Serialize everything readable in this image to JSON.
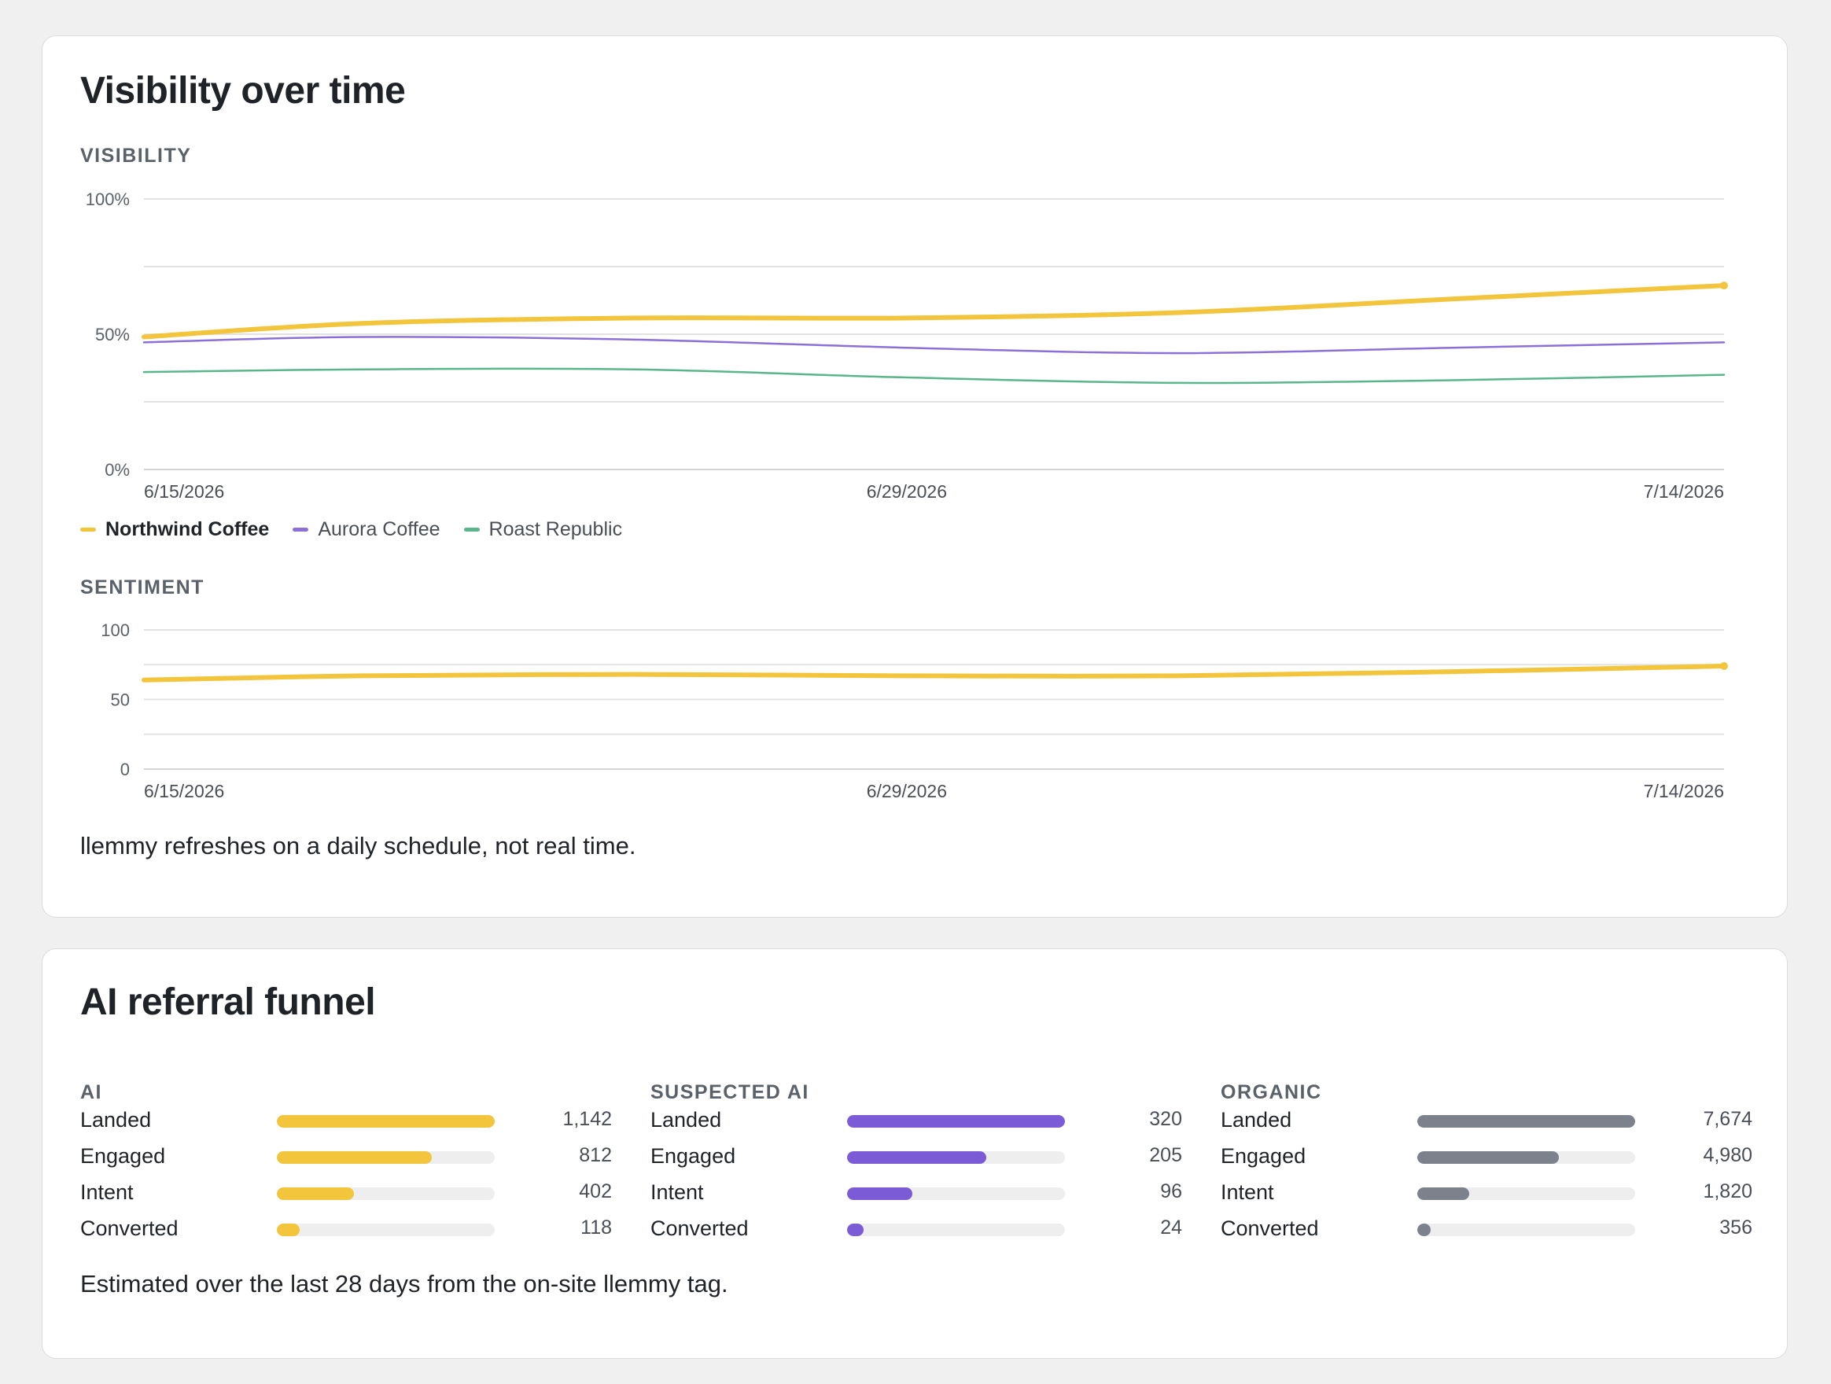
{
  "visibility_card": {
    "title": "Visibility over time",
    "visibility_label": "VISIBILITY",
    "sentiment_label": "SENTIMENT",
    "note": "llemmy refreshes on a daily schedule, not real time."
  },
  "funnel_card": {
    "title": "AI referral funnel",
    "note": "Estimated over the last 28 days from the on-site llemmy tag.",
    "columns": [
      {
        "title": "AI",
        "color": "#f2c53d",
        "rows": [
          {
            "label": "Landed",
            "value": 1142,
            "display": "1,142"
          },
          {
            "label": "Engaged",
            "value": 812,
            "display": "812"
          },
          {
            "label": "Intent",
            "value": 402,
            "display": "402"
          },
          {
            "label": "Converted",
            "value": 118,
            "display": "118"
          }
        ]
      },
      {
        "title": "SUSPECTED AI",
        "color": "#7b5bd6",
        "rows": [
          {
            "label": "Landed",
            "value": 320,
            "display": "320"
          },
          {
            "label": "Engaged",
            "value": 205,
            "display": "205"
          },
          {
            "label": "Intent",
            "value": 96,
            "display": "96"
          },
          {
            "label": "Converted",
            "value": 24,
            "display": "24"
          }
        ]
      },
      {
        "title": "ORGANIC",
        "color": "#7d818b",
        "rows": [
          {
            "label": "Landed",
            "value": 7674,
            "display": "7,674"
          },
          {
            "label": "Engaged",
            "value": 4980,
            "display": "4,980"
          },
          {
            "label": "Intent",
            "value": 1820,
            "display": "1,820"
          },
          {
            "label": "Converted",
            "value": 356,
            "display": "356"
          }
        ]
      }
    ]
  },
  "chart_data": [
    {
      "type": "line",
      "ylabel": "VISIBILITY",
      "ylim": [
        0,
        100
      ],
      "y_ticks": [
        "0%",
        "50%",
        "100%"
      ],
      "x_ticks": [
        "6/15/2026",
        "6/29/2026",
        "7/14/2026"
      ],
      "x_range": [
        "6/15/2026",
        "7/14/2026"
      ],
      "grid": true,
      "legend": "bottom-left",
      "x": [
        "6/15/2026",
        "6/19/2026",
        "6/24/2026",
        "6/29/2026",
        "7/4/2026",
        "7/9/2026",
        "7/14/2026"
      ],
      "series": [
        {
          "name": "Northwind Coffee",
          "color": "#f2c53d",
          "width": 6,
          "primary": true,
          "values": [
            49,
            54,
            56,
            56,
            58,
            63,
            68
          ]
        },
        {
          "name": "Aurora Coffee",
          "color": "#8c6fd9",
          "width": 2.5,
          "values": [
            47,
            49,
            48,
            45,
            43,
            45,
            47
          ]
        },
        {
          "name": "Roast Republic",
          "color": "#5bb58b",
          "width": 2.5,
          "values": [
            36,
            37,
            37,
            34,
            32,
            33,
            35
          ]
        }
      ]
    },
    {
      "type": "line",
      "ylabel": "SENTIMENT",
      "ylim": [
        0,
        100
      ],
      "y_ticks": [
        "0",
        "50",
        "100"
      ],
      "x_ticks": [
        "6/15/2026",
        "6/29/2026",
        "7/14/2026"
      ],
      "x_range": [
        "6/15/2026",
        "7/14/2026"
      ],
      "grid": true,
      "x": [
        "6/15/2026",
        "6/19/2026",
        "6/24/2026",
        "6/29/2026",
        "7/4/2026",
        "7/9/2026",
        "7/14/2026"
      ],
      "series": [
        {
          "name": "Northwind Coffee",
          "color": "#f2c53d",
          "width": 6,
          "primary": true,
          "values": [
            64,
            67,
            68,
            67,
            67,
            70,
            74
          ]
        }
      ]
    }
  ]
}
